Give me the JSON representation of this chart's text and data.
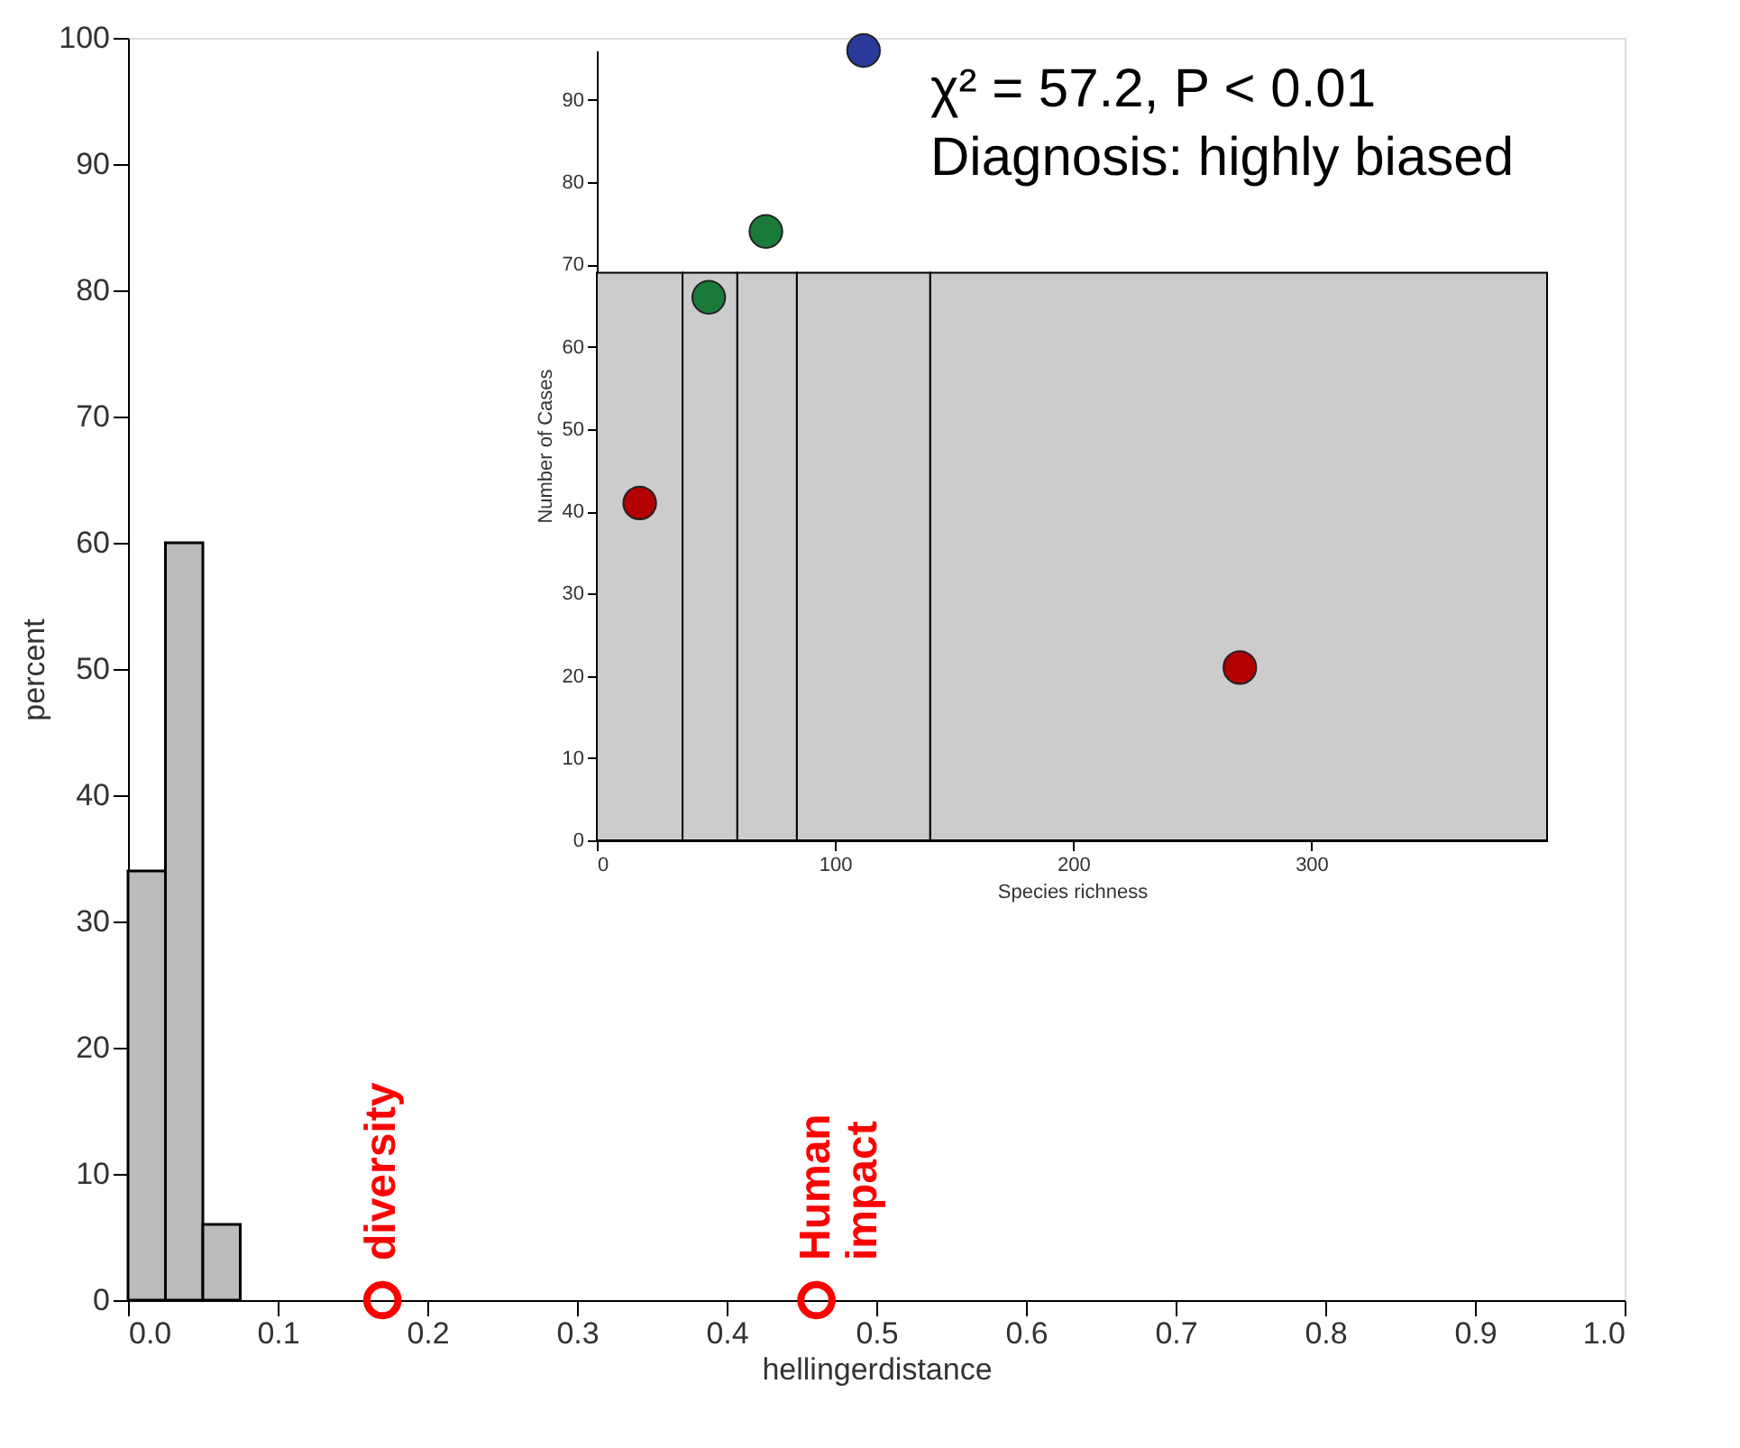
{
  "chart_data": [
    {
      "type": "histogram",
      "xlabel": "hellingerdistance",
      "ylabel": "percent",
      "xlim": [
        0,
        1
      ],
      "ylim": [
        0,
        100
      ],
      "xticks": [
        {
          "value": 0,
          "label": "0.0"
        },
        0.1,
        0.2,
        0.3,
        0.4,
        0.5,
        0.6,
        0.7,
        0.8,
        0.9,
        {
          "value": 1,
          "label": "1.0"
        }
      ],
      "yticks": [
        0,
        10,
        20,
        30,
        40,
        50,
        60,
        70,
        80,
        90,
        100
      ],
      "grid": false,
      "series": [
        {
          "bins": [
            0,
            0.025,
            0.05,
            0.075
          ],
          "values": [
            34,
            60,
            6
          ],
          "color": "#bbbbbb"
        },
        {
          "type": "scatter",
          "x": [
            0.17,
            0.46
          ],
          "values": [
            0,
            0
          ],
          "color": "#ff0000",
          "marker": "circle"
        }
      ],
      "annotations": [
        {
          "text": "diversity",
          "x": 0.17,
          "y": 0
        },
        {
          "text": "Human impact",
          "x": 0.46,
          "y": 0
        }
      ]
    },
    {
      "type": "scatter",
      "xlabel": "Species richness",
      "ylabel": "Number of Cases",
      "xlim": [
        0,
        399
      ],
      "ylim": [
        0,
        96
      ],
      "xticks": [
        0,
        100,
        200,
        300
      ],
      "yticks": [
        0,
        10,
        20,
        30,
        40,
        50,
        60,
        70,
        80,
        90
      ],
      "grid": false,
      "series": [
        {
          "type": "histogram",
          "bins": [
            0,
            36,
            59,
            84,
            140,
            399
          ],
          "values": [
            69,
            69,
            69,
            69,
            69
          ],
          "color": "#cccccc"
        },
        {
          "x": [
            18,
            47,
            71,
            112,
            270
          ],
          "values": [
            41,
            66,
            74,
            96,
            21
          ],
          "colors": [
            "#b30000",
            "#1a7a3a",
            "#1a7a3a",
            "#2a3a9a",
            "#b30000"
          ],
          "marker": "circle"
        }
      ],
      "annotations": [
        "χ² = 57.2, P < 0.01",
        "Diagnosis: highly biased"
      ]
    }
  ]
}
